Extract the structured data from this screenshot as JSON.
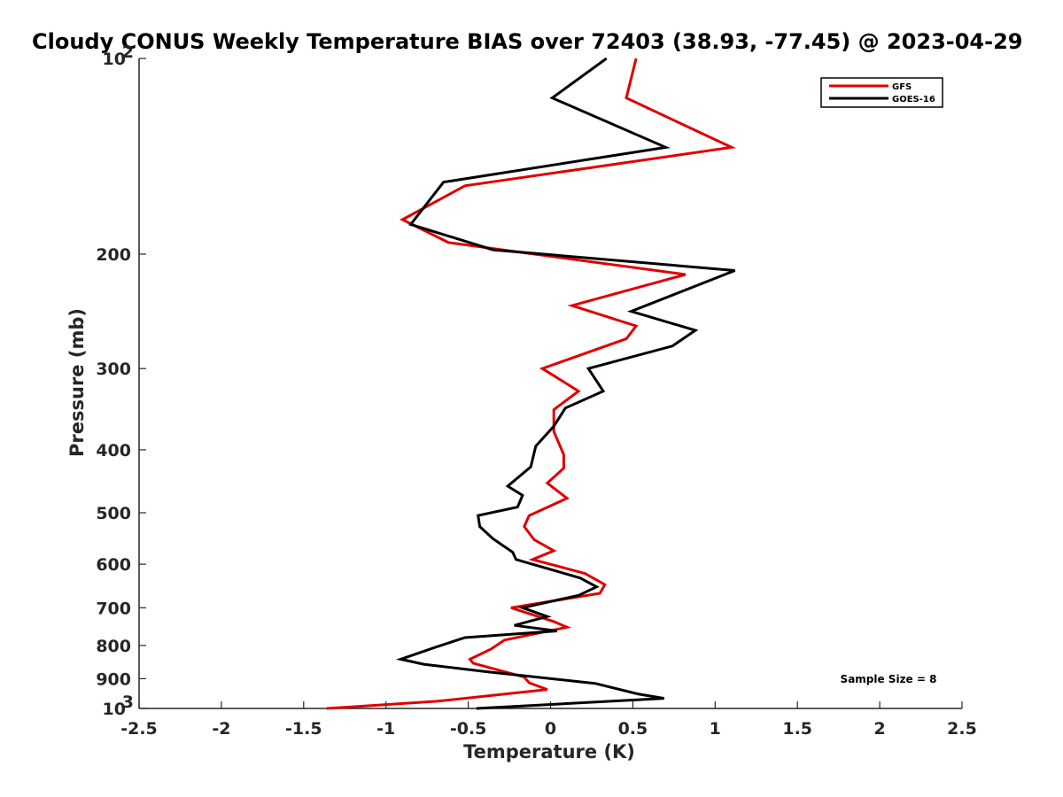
{
  "chart_data": {
    "type": "line",
    "title": "Cloudy CONUS Weekly Temperature BIAS over 72403 (38.93, -77.45) @ 2023-04-29",
    "xlabel": "Temperature (K)",
    "ylabel": "Pressure (mb)",
    "xlim": [
      -2.5,
      2.5
    ],
    "ylim": [
      100,
      1000
    ],
    "yscale": "log",
    "y_reversed": true,
    "xticks": [
      -2.5,
      -2,
      -1.5,
      -1,
      -0.5,
      0,
      0.5,
      1,
      1.5,
      2,
      2.5
    ],
    "xtick_labels": [
      "-2.5",
      "-2",
      "-1.5",
      "-1",
      "-0.5",
      "0",
      "0.5",
      "1",
      "1.5",
      "2",
      "2.5"
    ],
    "yticks": [
      {
        "value": 100,
        "label": "10",
        "sup": "2"
      },
      {
        "value": 200,
        "label": "200",
        "sup": ""
      },
      {
        "value": 300,
        "label": "300",
        "sup": ""
      },
      {
        "value": 400,
        "label": "400",
        "sup": ""
      },
      {
        "value": 500,
        "label": "500",
        "sup": ""
      },
      {
        "value": 600,
        "label": "600",
        "sup": ""
      },
      {
        "value": 700,
        "label": "700",
        "sup": ""
      },
      {
        "value": 800,
        "label": "800",
        "sup": ""
      },
      {
        "value": 900,
        "label": "900",
        "sup": ""
      },
      {
        "value": 1000,
        "label": "10",
        "sup": "3"
      }
    ],
    "grid": false,
    "legend_position": "top-right",
    "annotation": "Sample Size = 8",
    "series": [
      {
        "name": "GFS",
        "color": "#e00000",
        "points": [
          [
            0.52,
            100
          ],
          [
            0.46,
            115
          ],
          [
            1.1,
            137
          ],
          [
            -0.52,
            157
          ],
          [
            -0.9,
            177
          ],
          [
            -0.62,
            192
          ],
          [
            0.82,
            215
          ],
          [
            0.13,
            240
          ],
          [
            0.52,
            258
          ],
          [
            0.46,
            270
          ],
          [
            -0.05,
            300
          ],
          [
            0.17,
            325
          ],
          [
            0.02,
            347
          ],
          [
            0.02,
            375
          ],
          [
            0.08,
            407
          ],
          [
            0.08,
            427
          ],
          [
            -0.02,
            450
          ],
          [
            0.1,
            475
          ],
          [
            -0.13,
            505
          ],
          [
            -0.16,
            525
          ],
          [
            -0.1,
            550
          ],
          [
            0.02,
            572
          ],
          [
            -0.11,
            590
          ],
          [
            0.21,
            620
          ],
          [
            0.33,
            645
          ],
          [
            0.3,
            665
          ],
          [
            -0.24,
            700
          ],
          [
            0.02,
            735
          ],
          [
            0.1,
            750
          ],
          [
            -0.28,
            785
          ],
          [
            -0.36,
            810
          ],
          [
            -0.49,
            840
          ],
          [
            -0.47,
            852
          ],
          [
            -0.16,
            895
          ],
          [
            -0.13,
            913
          ],
          [
            -0.02,
            935
          ],
          [
            -0.69,
            975
          ],
          [
            -1.36,
            1000
          ]
        ]
      },
      {
        "name": "GOES-16",
        "color": "#000000",
        "points": [
          [
            0.34,
            100
          ],
          [
            0.01,
            115
          ],
          [
            0.7,
            137
          ],
          [
            -0.65,
            155
          ],
          [
            -0.85,
            180
          ],
          [
            -0.35,
            197
          ],
          [
            1.12,
            212
          ],
          [
            0.49,
            245
          ],
          [
            0.88,
            262
          ],
          [
            0.74,
            277
          ],
          [
            0.23,
            300
          ],
          [
            0.32,
            325
          ],
          [
            0.09,
            345
          ],
          [
            0.02,
            368
          ],
          [
            -0.09,
            395
          ],
          [
            -0.12,
            425
          ],
          [
            -0.26,
            455
          ],
          [
            -0.17,
            470
          ],
          [
            -0.2,
            490
          ],
          [
            -0.44,
            505
          ],
          [
            -0.43,
            525
          ],
          [
            -0.35,
            548
          ],
          [
            -0.23,
            575
          ],
          [
            -0.21,
            590
          ],
          [
            0.18,
            630
          ],
          [
            0.28,
            650
          ],
          [
            0.17,
            670
          ],
          [
            -0.17,
            700
          ],
          [
            -0.02,
            722
          ],
          [
            -0.22,
            745
          ],
          [
            0.04,
            760
          ],
          [
            -0.52,
            778
          ],
          [
            -0.7,
            805
          ],
          [
            -0.91,
            840
          ],
          [
            -0.77,
            855
          ],
          [
            -0.39,
            878
          ],
          [
            0.27,
            915
          ],
          [
            0.53,
            950
          ],
          [
            0.69,
            965
          ],
          [
            -0.45,
            1000
          ]
        ]
      }
    ]
  }
}
